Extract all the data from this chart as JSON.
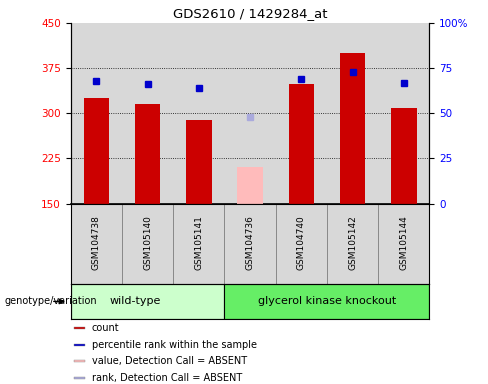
{
  "title": "GDS2610 / 1429284_at",
  "samples": [
    "GSM104738",
    "GSM105140",
    "GSM105141",
    "GSM104736",
    "GSM104740",
    "GSM105142",
    "GSM105144"
  ],
  "count_values": [
    325,
    315,
    288,
    null,
    348,
    400,
    308
  ],
  "count_absent": [
    null,
    null,
    null,
    210,
    null,
    null,
    null
  ],
  "rank_values": [
    68,
    66,
    64,
    null,
    69,
    73,
    67
  ],
  "rank_absent": [
    null,
    null,
    null,
    48,
    null,
    null,
    null
  ],
  "ylim_left": [
    150,
    450
  ],
  "ylim_right": [
    0,
    100
  ],
  "yticks_left": [
    150,
    225,
    300,
    375,
    450
  ],
  "yticks_right": [
    0,
    25,
    50,
    75,
    100
  ],
  "ytick_labels_right": [
    "0",
    "25",
    "50",
    "75",
    "100%"
  ],
  "wild_type_label": "wild-type",
  "knockout_label": "glycerol kinase knockout",
  "genotype_label": "genotype/variation",
  "bar_color_present": "#cc0000",
  "bar_color_absent": "#ffbbbb",
  "rank_color_present": "#0000cc",
  "rank_color_absent": "#aaaadd",
  "bg_color_plot": "#d8d8d8",
  "bg_color_wildtype": "#ccffcc",
  "bg_color_knockout": "#66ee66",
  "legend_items": [
    {
      "color": "#cc0000",
      "label": "count"
    },
    {
      "color": "#0000cc",
      "label": "percentile rank within the sample"
    },
    {
      "color": "#ffbbbb",
      "label": "value, Detection Call = ABSENT"
    },
    {
      "color": "#aaaadd",
      "label": "rank, Detection Call = ABSENT"
    }
  ],
  "bar_width": 0.5,
  "n_wildtype": 3,
  "n_knockout": 4
}
